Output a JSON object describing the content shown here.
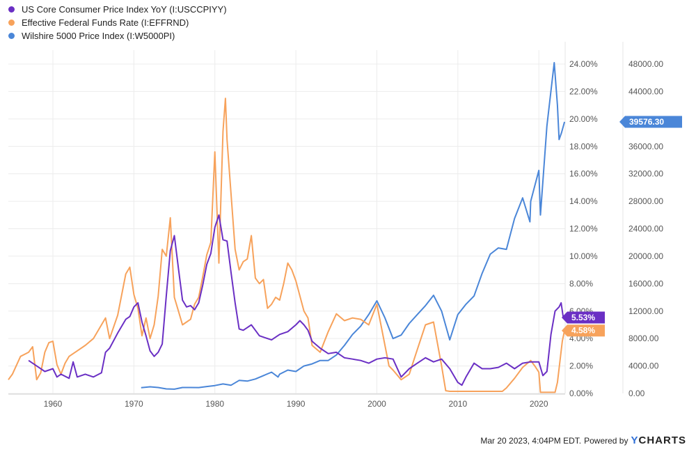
{
  "chart_data": {
    "type": "line",
    "x_axis": {
      "ticks": [
        "1960",
        "1970",
        "1980",
        "1990",
        "2000",
        "2010",
        "2020"
      ],
      "range": [
        1954.5,
        2023.25
      ]
    },
    "y_left": {
      "ticks": [
        "0.00%",
        "2.00%",
        "4.00%",
        "6.00%",
        "8.00%",
        "10.00%",
        "12.00%",
        "14.00%",
        "16.00%",
        "18.00%",
        "20.00%",
        "22.00%",
        "24.00%"
      ],
      "range": [
        0,
        24
      ]
    },
    "y_right": {
      "ticks": [
        "0.00",
        "4000.00",
        "8000.00",
        "12000.00",
        "16000.00",
        "20000.00",
        "24000.00",
        "28000.00",
        "32000.00",
        "36000.00",
        "40000.00",
        "44000.00",
        "48000.00"
      ],
      "range": [
        0,
        48000
      ]
    },
    "grid": true,
    "legend_placement": "top-left",
    "series": [
      {
        "name": "US Core Consumer Price Index YoY (I:USCCPIYY)",
        "axis": "left",
        "color": "#6a2fc4",
        "last_label": "5.53%",
        "points": [
          [
            1957.0,
            2.4
          ],
          [
            1958.0,
            2.0
          ],
          [
            1959.0,
            1.6
          ],
          [
            1960.0,
            1.8
          ],
          [
            1960.5,
            1.2
          ],
          [
            1961.0,
            1.4
          ],
          [
            1962.0,
            1.1
          ],
          [
            1962.5,
            2.3
          ],
          [
            1963.0,
            1.2
          ],
          [
            1964.0,
            1.4
          ],
          [
            1965.0,
            1.2
          ],
          [
            1966.0,
            1.5
          ],
          [
            1966.5,
            3.0
          ],
          [
            1967.0,
            3.3
          ],
          [
            1968.0,
            4.4
          ],
          [
            1969.0,
            5.4
          ],
          [
            1969.5,
            5.6
          ],
          [
            1970.0,
            6.3
          ],
          [
            1970.5,
            6.6
          ],
          [
            1971.0,
            5.2
          ],
          [
            1971.5,
            4.2
          ],
          [
            1972.0,
            3.1
          ],
          [
            1972.5,
            2.7
          ],
          [
            1973.0,
            3.0
          ],
          [
            1973.5,
            3.6
          ],
          [
            1974.0,
            7.1
          ],
          [
            1974.5,
            10.4
          ],
          [
            1975.0,
            11.5
          ],
          [
            1975.5,
            9.1
          ],
          [
            1976.0,
            6.8
          ],
          [
            1976.5,
            6.3
          ],
          [
            1977.0,
            6.4
          ],
          [
            1977.5,
            6.1
          ],
          [
            1978.0,
            6.6
          ],
          [
            1978.5,
            7.9
          ],
          [
            1979.0,
            9.4
          ],
          [
            1979.5,
            10.2
          ],
          [
            1980.0,
            12.1
          ],
          [
            1980.5,
            13.0
          ],
          [
            1981.0,
            11.2
          ],
          [
            1981.5,
            11.1
          ],
          [
            1982.0,
            8.8
          ],
          [
            1982.5,
            6.6
          ],
          [
            1983.0,
            4.7
          ],
          [
            1983.5,
            4.6
          ],
          [
            1984.0,
            4.8
          ],
          [
            1984.5,
            5.0
          ],
          [
            1985.0,
            4.6
          ],
          [
            1985.5,
            4.2
          ],
          [
            1986.0,
            4.1
          ],
          [
            1987.0,
            3.9
          ],
          [
            1988.0,
            4.3
          ],
          [
            1989.0,
            4.5
          ],
          [
            1990.0,
            5.0
          ],
          [
            1990.5,
            5.3
          ],
          [
            1991.0,
            5.0
          ],
          [
            1991.5,
            4.6
          ],
          [
            1992.0,
            3.8
          ],
          [
            1993.0,
            3.3
          ],
          [
            1994.0,
            2.9
          ],
          [
            1995.0,
            3.0
          ],
          [
            1996.0,
            2.6
          ],
          [
            1997.0,
            2.5
          ],
          [
            1998.0,
            2.4
          ],
          [
            1999.0,
            2.2
          ],
          [
            2000.0,
            2.5
          ],
          [
            2001.0,
            2.6
          ],
          [
            2002.0,
            2.5
          ],
          [
            2003.0,
            1.2
          ],
          [
            2004.0,
            1.8
          ],
          [
            2005.0,
            2.2
          ],
          [
            2006.0,
            2.6
          ],
          [
            2007.0,
            2.3
          ],
          [
            2008.0,
            2.5
          ],
          [
            2009.0,
            1.8
          ],
          [
            2010.0,
            0.8
          ],
          [
            2010.5,
            0.6
          ],
          [
            2011.0,
            1.2
          ],
          [
            2012.0,
            2.2
          ],
          [
            2013.0,
            1.8
          ],
          [
            2014.0,
            1.8
          ],
          [
            2015.0,
            1.9
          ],
          [
            2016.0,
            2.2
          ],
          [
            2017.0,
            1.8
          ],
          [
            2018.0,
            2.2
          ],
          [
            2019.0,
            2.3
          ],
          [
            2020.0,
            2.3
          ],
          [
            2020.5,
            1.3
          ],
          [
            2021.0,
            1.6
          ],
          [
            2021.5,
            4.3
          ],
          [
            2022.0,
            6.0
          ],
          [
            2022.5,
            6.3
          ],
          [
            2022.75,
            6.6
          ],
          [
            2023.0,
            5.6
          ],
          [
            2023.17,
            5.53
          ]
        ]
      },
      {
        "name": "Effective Federal Funds Rate (I:EFFRND)",
        "axis": "left",
        "color": "#f7a25b",
        "last_label": "4.58%",
        "points": [
          [
            1954.5,
            1.0
          ],
          [
            1955.0,
            1.4
          ],
          [
            1956.0,
            2.7
          ],
          [
            1957.0,
            3.0
          ],
          [
            1957.5,
            3.4
          ],
          [
            1958.0,
            1.0
          ],
          [
            1958.5,
            1.5
          ],
          [
            1959.0,
            3.0
          ],
          [
            1959.5,
            3.7
          ],
          [
            1960.0,
            3.8
          ],
          [
            1960.5,
            2.1
          ],
          [
            1961.0,
            1.4
          ],
          [
            1961.5,
            2.2
          ],
          [
            1962.0,
            2.7
          ],
          [
            1963.0,
            3.1
          ],
          [
            1964.0,
            3.5
          ],
          [
            1965.0,
            4.0
          ],
          [
            1966.0,
            5.0
          ],
          [
            1966.5,
            5.5
          ],
          [
            1967.0,
            4.0
          ],
          [
            1968.0,
            5.7
          ],
          [
            1969.0,
            8.7
          ],
          [
            1969.5,
            9.2
          ],
          [
            1970.0,
            7.2
          ],
          [
            1970.5,
            6.2
          ],
          [
            1971.0,
            4.2
          ],
          [
            1971.5,
            5.5
          ],
          [
            1972.0,
            4.0
          ],
          [
            1972.5,
            5.0
          ],
          [
            1973.0,
            7.1
          ],
          [
            1973.5,
            10.5
          ],
          [
            1974.0,
            10.0
          ],
          [
            1974.5,
            12.8
          ],
          [
            1975.0,
            7.0
          ],
          [
            1975.5,
            6.0
          ],
          [
            1976.0,
            5.0
          ],
          [
            1976.5,
            5.2
          ],
          [
            1977.0,
            5.4
          ],
          [
            1977.5,
            6.5
          ],
          [
            1978.0,
            7.0
          ],
          [
            1978.5,
            8.5
          ],
          [
            1979.0,
            10.1
          ],
          [
            1979.5,
            11.0
          ],
          [
            1980.0,
            17.6
          ],
          [
            1980.5,
            9.5
          ],
          [
            1981.0,
            19.1
          ],
          [
            1981.3,
            21.5
          ],
          [
            1981.5,
            18.5
          ],
          [
            1982.0,
            14.5
          ],
          [
            1982.5,
            10.5
          ],
          [
            1983.0,
            9.0
          ],
          [
            1983.5,
            9.6
          ],
          [
            1984.0,
            9.8
          ],
          [
            1984.5,
            11.5
          ],
          [
            1985.0,
            8.4
          ],
          [
            1985.5,
            8.0
          ],
          [
            1986.0,
            8.3
          ],
          [
            1986.5,
            6.2
          ],
          [
            1987.0,
            6.5
          ],
          [
            1987.5,
            7.0
          ],
          [
            1988.0,
            6.8
          ],
          [
            1988.5,
            8.0
          ],
          [
            1989.0,
            9.5
          ],
          [
            1989.5,
            9.0
          ],
          [
            1990.0,
            8.2
          ],
          [
            1991.0,
            6.0
          ],
          [
            1991.5,
            5.5
          ],
          [
            1992.0,
            3.5
          ],
          [
            1993.0,
            3.0
          ],
          [
            1994.0,
            4.5
          ],
          [
            1995.0,
            5.8
          ],
          [
            1996.0,
            5.3
          ],
          [
            1997.0,
            5.5
          ],
          [
            1998.0,
            5.4
          ],
          [
            1999.0,
            5.0
          ],
          [
            2000.0,
            6.5
          ],
          [
            2001.0,
            3.5
          ],
          [
            2001.5,
            2.0
          ],
          [
            2002.0,
            1.7
          ],
          [
            2003.0,
            1.0
          ],
          [
            2004.0,
            1.4
          ],
          [
            2005.0,
            3.2
          ],
          [
            2006.0,
            5.0
          ],
          [
            2007.0,
            5.2
          ],
          [
            2008.0,
            2.0
          ],
          [
            2008.5,
            0.2
          ],
          [
            2009.0,
            0.15
          ],
          [
            2012.0,
            0.15
          ],
          [
            2015.5,
            0.15
          ],
          [
            2016.0,
            0.4
          ],
          [
            2017.0,
            1.1
          ],
          [
            2018.0,
            1.9
          ],
          [
            2019.0,
            2.4
          ],
          [
            2019.5,
            2.0
          ],
          [
            2020.0,
            1.55
          ],
          [
            2020.2,
            0.08
          ],
          [
            2022.0,
            0.08
          ],
          [
            2022.3,
            0.8
          ],
          [
            2022.6,
            2.3
          ],
          [
            2022.9,
            3.8
          ],
          [
            2023.17,
            4.58
          ]
        ]
      },
      {
        "name": "Wilshire 5000 Price Index (I:W5000PI)",
        "axis": "right",
        "color": "#4a86d8",
        "last_label": "39576.30",
        "points": [
          [
            1970.9,
            830
          ],
          [
            1972.0,
            960
          ],
          [
            1973.0,
            860
          ],
          [
            1974.0,
            660
          ],
          [
            1975.0,
            620
          ],
          [
            1976.0,
            860
          ],
          [
            1977.0,
            860
          ],
          [
            1978.0,
            850
          ],
          [
            1979.0,
            1000
          ],
          [
            1980.0,
            1150
          ],
          [
            1981.0,
            1380
          ],
          [
            1982.0,
            1200
          ],
          [
            1983.0,
            1900
          ],
          [
            1984.0,
            1800
          ],
          [
            1985.0,
            2100
          ],
          [
            1986.0,
            2600
          ],
          [
            1987.0,
            3100
          ],
          [
            1987.8,
            2400
          ],
          [
            1988.0,
            2800
          ],
          [
            1989.0,
            3400
          ],
          [
            1990.0,
            3200
          ],
          [
            1991.0,
            4000
          ],
          [
            1992.0,
            4300
          ],
          [
            1993.0,
            4800
          ],
          [
            1994.0,
            4800
          ],
          [
            1995.0,
            5600
          ],
          [
            1996.0,
            7000
          ],
          [
            1997.0,
            8600
          ],
          [
            1998.0,
            9800
          ],
          [
            1999.0,
            11500
          ],
          [
            2000.0,
            13500
          ],
          [
            2001.0,
            11000
          ],
          [
            2002.0,
            8000
          ],
          [
            2003.0,
            8500
          ],
          [
            2004.0,
            10200
          ],
          [
            2005.0,
            11500
          ],
          [
            2006.0,
            12800
          ],
          [
            2007.0,
            14300
          ],
          [
            2008.0,
            12000
          ],
          [
            2009.0,
            7800
          ],
          [
            2010.0,
            11500
          ],
          [
            2011.0,
            13000
          ],
          [
            2012.0,
            14200
          ],
          [
            2013.0,
            17500
          ],
          [
            2014.0,
            20300
          ],
          [
            2015.0,
            21200
          ],
          [
            2016.0,
            21000
          ],
          [
            2017.0,
            25500
          ],
          [
            2018.0,
            28500
          ],
          [
            2018.9,
            25000
          ],
          [
            2019.0,
            28000
          ],
          [
            2020.0,
            32500
          ],
          [
            2020.2,
            26000
          ],
          [
            2021.0,
            39000
          ],
          [
            2021.9,
            48200
          ],
          [
            2022.3,
            42000
          ],
          [
            2022.5,
            37000
          ],
          [
            2022.8,
            38000
          ],
          [
            2023.17,
            39576
          ]
        ]
      }
    ]
  },
  "footer": {
    "timestamp": "Mar 20 2023, 4:04PM EDT.",
    "powered_by": "Powered by",
    "brand_y": "Y",
    "brand_rest": "CHARTS"
  }
}
